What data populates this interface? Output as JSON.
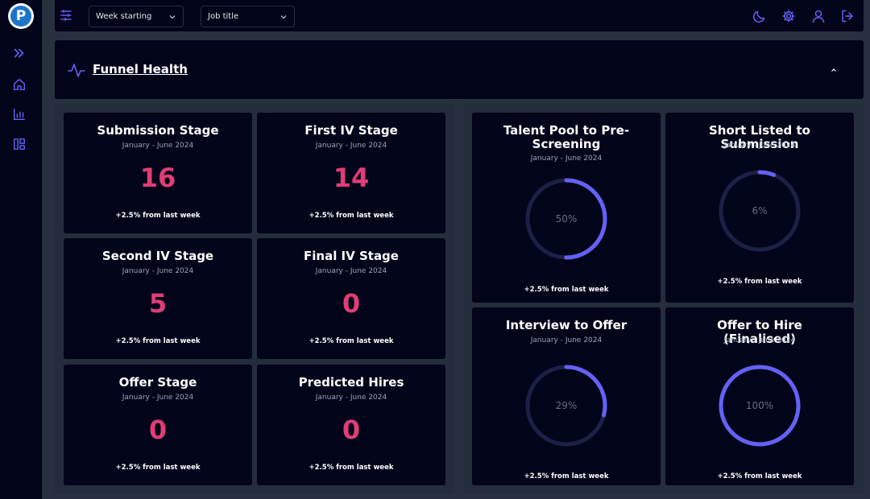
{
  "app": {
    "logo_letter": "P"
  },
  "colors": {
    "accent": "#6461f5",
    "value": "#df3d77",
    "ring_track": "#1d2045",
    "card_bg": "#02041a"
  },
  "sidebar": {
    "items": [
      {
        "icon": "double-chevron-right-icon"
      },
      {
        "icon": "home-icon"
      },
      {
        "icon": "bar-chart-icon"
      },
      {
        "icon": "dashboard-layout-icon"
      }
    ]
  },
  "topbar": {
    "week_select": {
      "value": "Week starting"
    },
    "job_select": {
      "value": "Job title"
    },
    "icons": [
      "moon-icon",
      "gear-icon",
      "user-icon",
      "logout-icon"
    ]
  },
  "section": {
    "title": "Funnel Health"
  },
  "stages": [
    {
      "title": "Submission Stage",
      "period": "January - June 2024",
      "value": "16",
      "delta": "+2.5% from last week"
    },
    {
      "title": "First IV Stage",
      "period": "January - June 2024",
      "value": "14",
      "delta": "+2.5% from last week"
    },
    {
      "title": "Second IV Stage",
      "period": "January - June 2024",
      "value": "5",
      "delta": "+2.5% from last week"
    },
    {
      "title": "Final IV Stage",
      "period": "January - June 2024",
      "value": "0",
      "delta": "+2.5% from last week"
    },
    {
      "title": "Offer Stage",
      "period": "January - June 2024",
      "value": "0",
      "delta": "+2.5% from last week"
    },
    {
      "title": "Predicted Hires",
      "period": "January - June 2024",
      "value": "0",
      "delta": "+2.5% from last week"
    }
  ],
  "conversions": [
    {
      "title": "Talent Pool to Pre-Screening",
      "period": "January - June 2024",
      "percent": 50,
      "label": "50%",
      "delta": "+2.5% from last week"
    },
    {
      "title": "Short Listed to Submission",
      "period": "January - June 2024",
      "percent": 6,
      "label": "6%",
      "delta": "+2.5% from last week"
    },
    {
      "title": "Interview to Offer",
      "period": "January - June 2024",
      "percent": 29,
      "label": "29%",
      "delta": "+2.5% from last week"
    },
    {
      "title": "Offer to Hire (Finalised)",
      "period": "January - June 2024",
      "percent": 100,
      "label": "100%",
      "delta": "+2.5% from last week"
    }
  ]
}
